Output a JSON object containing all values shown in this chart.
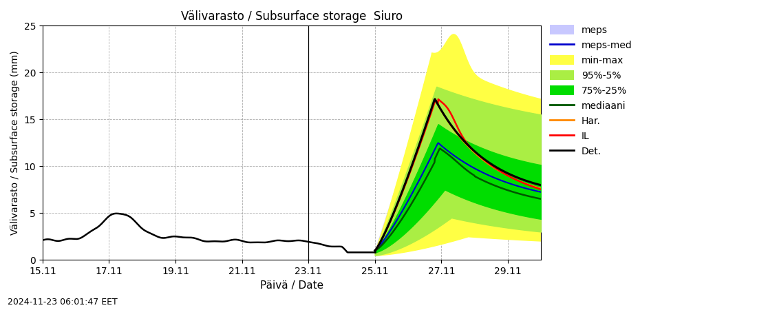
{
  "title": "Välivarasto / Subsurface storage  Siuro",
  "xlabel": "Päivä / Date",
  "ylabel": "Välivarasto / Subsurface storage (mm)",
  "timestamp": "2024-11-23 06:01:47 EET",
  "ylim": [
    0,
    25
  ],
  "colors": {
    "meps_fill": "#c8c8ff",
    "meps_med": "#0000cc",
    "min_max": "#ffff44",
    "pct95_5": "#aaee44",
    "pct75_25": "#00dd00",
    "mediaani": "#005500",
    "har": "#ff8800",
    "il": "#ff0000",
    "det": "#000000"
  },
  "xtick_labels": [
    "15.11",
    "17.11",
    "19.11",
    "21.11",
    "23.11",
    "25.11",
    "27.11",
    "29.11"
  ],
  "xtick_positions": [
    0,
    2,
    4,
    6,
    8,
    10,
    12,
    14
  ],
  "background_color": "#ffffff",
  "grid_color": "#999999"
}
